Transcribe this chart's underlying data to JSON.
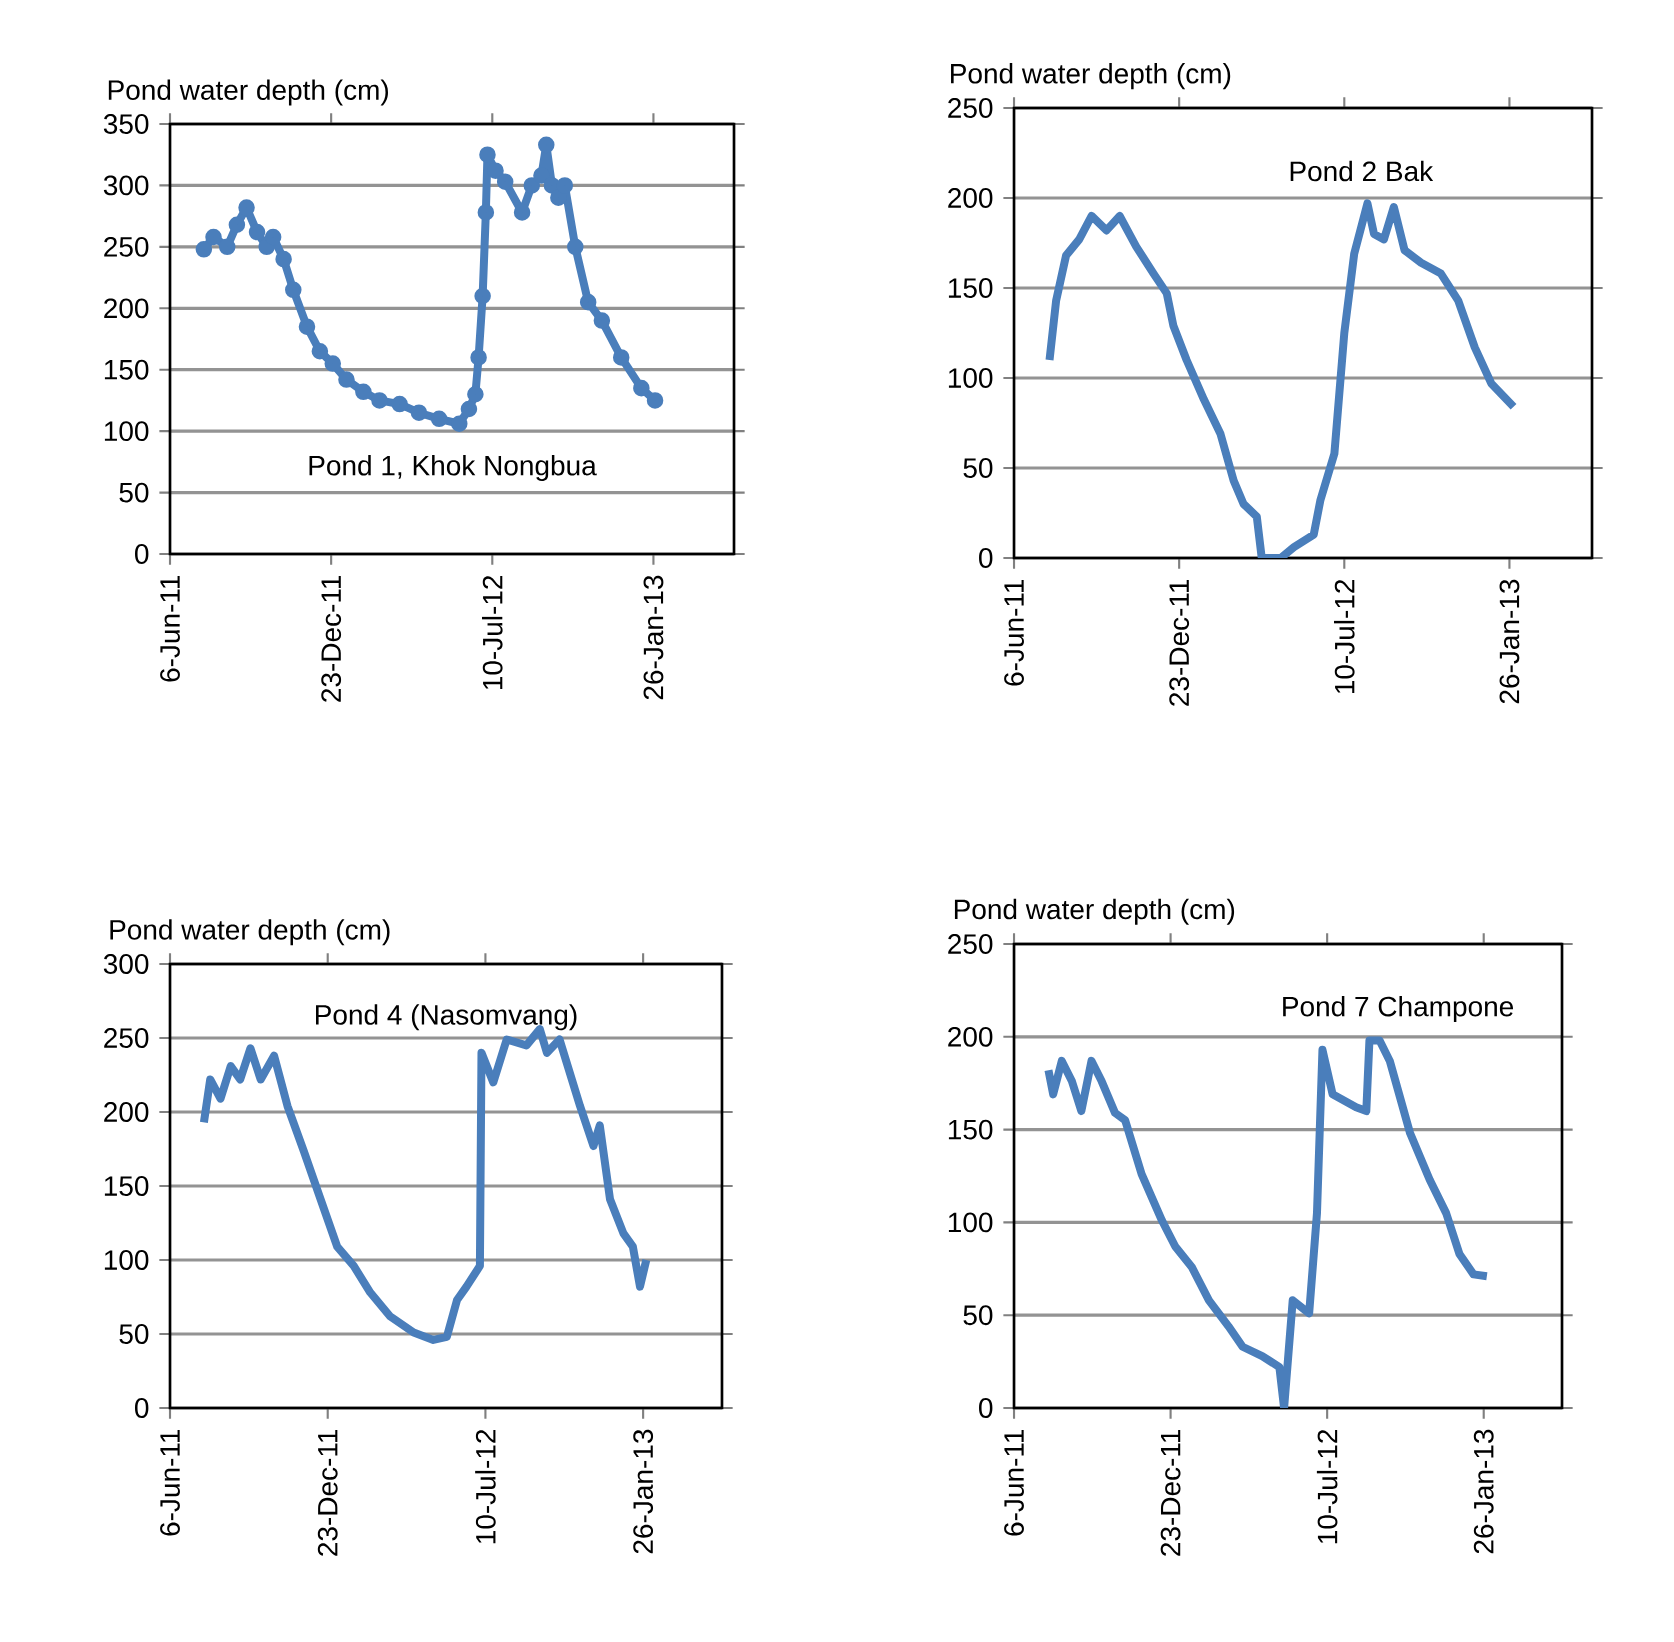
{
  "chart_data": [
    {
      "type": "line",
      "ylabel": "Pond water depth (cm)",
      "annotations": [
        "Pond 1, Khok Nongbua"
      ],
      "xlim": [
        "2011-06-06",
        "2013-05-06"
      ],
      "xticks": [
        {
          "value": "2011-06-06",
          "label": "6-Jun-11"
        },
        {
          "value": "2011-12-23",
          "label": "23-Dec-11"
        },
        {
          "value": "2012-07-10",
          "label": "10-Jul-12"
        },
        {
          "value": "2013-01-26",
          "label": "26-Jan-13"
        }
      ],
      "ylim": [
        0,
        350
      ],
      "yticks": [
        0,
        50,
        100,
        150,
        200,
        250,
        300,
        350
      ],
      "grid": "y",
      "marker": "circle",
      "color": "#4a7ebb",
      "x": [
        "2011-07-18",
        "2011-07-30",
        "2011-08-16",
        "2011-08-28",
        "2011-09-09",
        "2011-09-22",
        "2011-10-04",
        "2011-10-12",
        "2011-10-25",
        "2011-11-06",
        "2011-11-23",
        "2011-12-09",
        "2011-12-25",
        "2012-01-11",
        "2012-02-01",
        "2012-02-21",
        "2012-03-17",
        "2012-04-10",
        "2012-05-05",
        "2012-05-30",
        "2012-06-11",
        "2012-06-19",
        "2012-06-23",
        "2012-06-28",
        "2012-07-02",
        "2012-07-04",
        "2012-07-14",
        "2012-07-26",
        "2012-08-16",
        "2012-08-28",
        "2012-09-09",
        "2012-09-15",
        "2012-09-22",
        "2012-09-30",
        "2012-10-08",
        "2012-10-21",
        "2012-11-06",
        "2012-11-23",
        "2012-12-17",
        "2013-01-11",
        "2013-01-28"
      ],
      "values": [
        248,
        258,
        250,
        268,
        282,
        262,
        250,
        258,
        240,
        215,
        185,
        165,
        155,
        142,
        132,
        125,
        122,
        115,
        110,
        106,
        118,
        130,
        160,
        210,
        278,
        325,
        312,
        303,
        278,
        300,
        308,
        333,
        300,
        290,
        300,
        250,
        205,
        190,
        160,
        135,
        125
      ]
    },
    {
      "type": "line",
      "ylabel": "Pond water depth (cm)",
      "annotations": [
        "Pond 2 Bak"
      ],
      "xlim": [
        "2011-06-06",
        "2013-05-06"
      ],
      "xticks": [
        {
          "value": "2011-06-06",
          "label": "6-Jun-11"
        },
        {
          "value": "2011-12-23",
          "label": "23-Dec-11"
        },
        {
          "value": "2012-07-10",
          "label": "10-Jul-12"
        },
        {
          "value": "2013-01-26",
          "label": "26-Jan-13"
        }
      ],
      "ylim": [
        0,
        250
      ],
      "yticks": [
        0,
        50,
        100,
        150,
        200,
        250
      ],
      "grid": "y",
      "color": "#4a7ebb",
      "x": [
        "2011-07-19",
        "2011-07-27",
        "2011-08-08",
        "2011-08-24",
        "2011-09-08",
        "2011-09-26",
        "2011-10-12",
        "2011-11-01",
        "2011-11-22",
        "2011-12-08",
        "2011-12-16",
        "2012-01-01",
        "2012-01-22",
        "2012-02-11",
        "2012-02-27",
        "2012-03-10",
        "2012-03-26",
        "2012-04-01",
        "2012-04-24",
        "2012-05-10",
        "2012-06-03",
        "2012-06-11",
        "2012-06-28",
        "2012-07-10",
        "2012-07-22",
        "2012-08-07",
        "2012-08-15",
        "2012-08-27",
        "2012-09-08",
        "2012-09-21",
        "2012-10-11",
        "2012-11-04",
        "2012-11-25",
        "2012-12-15",
        "2013-01-04",
        "2013-01-31"
      ],
      "values": [
        110,
        143,
        168,
        177,
        190,
        182,
        190,
        173,
        158,
        147,
        129,
        110,
        88,
        69,
        43,
        30,
        23,
        0,
        0,
        6,
        13,
        32,
        58,
        125,
        169,
        197,
        180,
        177,
        195,
        171,
        164,
        158,
        143,
        117,
        97,
        84
      ]
    },
    {
      "type": "line",
      "ylabel": "Pond water depth (cm)",
      "annotations": [
        "Pond 4 (Nasomvang)"
      ],
      "xlim": [
        "2011-06-06",
        "2013-05-06"
      ],
      "xticks": [
        {
          "value": "2011-06-06",
          "label": "6-Jun-11"
        },
        {
          "value": "2011-12-23",
          "label": "23-Dec-11"
        },
        {
          "value": "2012-07-10",
          "label": "10-Jul-12"
        },
        {
          "value": "2013-01-26",
          "label": "26-Jan-13"
        }
      ],
      "ylim": [
        0,
        300
      ],
      "yticks": [
        0,
        50,
        100,
        150,
        200,
        250,
        300
      ],
      "grid": "y",
      "color": "#4a7ebb",
      "x": [
        "2011-07-19",
        "2011-07-27",
        "2011-08-09",
        "2011-08-22",
        "2011-09-03",
        "2011-09-16",
        "2011-09-29",
        "2011-10-16",
        "2011-11-02",
        "2011-11-23",
        "2011-12-14",
        "2012-01-04",
        "2012-01-25",
        "2012-02-15",
        "2012-03-11",
        "2012-04-10",
        "2012-05-05",
        "2012-05-22",
        "2012-06-04",
        "2012-06-16",
        "2012-07-03",
        "2012-07-05",
        "2012-07-20",
        "2012-08-06",
        "2012-08-31",
        "2012-09-17",
        "2012-09-26",
        "2012-10-12",
        "2012-11-07",
        "2012-11-24",
        "2012-12-02",
        "2012-12-15",
        "2013-01-01",
        "2013-01-13",
        "2013-01-22",
        "2013-01-30"
      ],
      "values": [
        193,
        222,
        209,
        231,
        222,
        243,
        222,
        238,
        204,
        173,
        141,
        109,
        96,
        78,
        62,
        51,
        46,
        48,
        73,
        82,
        96,
        240,
        220,
        249,
        245,
        256,
        240,
        249,
        204,
        177,
        191,
        141,
        118,
        109,
        82,
        100
      ]
    },
    {
      "type": "line",
      "ylabel": "Pond water depth (cm)",
      "annotations": [
        "Pond 7 Champone"
      ],
      "xlim": [
        "2011-06-06",
        "2013-05-06"
      ],
      "xticks": [
        {
          "value": "2011-06-06",
          "label": "6-Jun-11"
        },
        {
          "value": "2011-12-23",
          "label": "23-Dec-11"
        },
        {
          "value": "2012-07-10",
          "label": "10-Jul-12"
        },
        {
          "value": "2013-01-26",
          "label": "26-Jan-13"
        }
      ],
      "ylim": [
        0,
        250
      ],
      "yticks": [
        0,
        50,
        100,
        150,
        200,
        250
      ],
      "grid": "y",
      "color": "#4a7ebb",
      "x": [
        "2011-07-20",
        "2011-07-26",
        "2011-08-06",
        "2011-08-19",
        "2011-08-31",
        "2011-09-13",
        "2011-09-26",
        "2011-10-13",
        "2011-10-26",
        "2011-11-16",
        "2011-12-12",
        "2011-12-29",
        "2012-01-19",
        "2012-02-10",
        "2012-03-06",
        "2012-03-24",
        "2012-04-18",
        "2012-05-10",
        "2012-05-16",
        "2012-05-27",
        "2012-06-17",
        "2012-06-27",
        "2012-07-04",
        "2012-07-17",
        "2012-08-16",
        "2012-08-29",
        "2012-09-02",
        "2012-09-15",
        "2012-09-28",
        "2012-10-24",
        "2012-11-18",
        "2012-12-09",
        "2012-12-26",
        "2013-01-13",
        "2013-01-30"
      ],
      "values": [
        182,
        169,
        187,
        176,
        160,
        187,
        176,
        159,
        155,
        126,
        101,
        87,
        76,
        58,
        44,
        33,
        28,
        22,
        0,
        58,
        51,
        105,
        193,
        169,
        162,
        160,
        198,
        198,
        187,
        148,
        123,
        105,
        83,
        72,
        71
      ]
    }
  ]
}
